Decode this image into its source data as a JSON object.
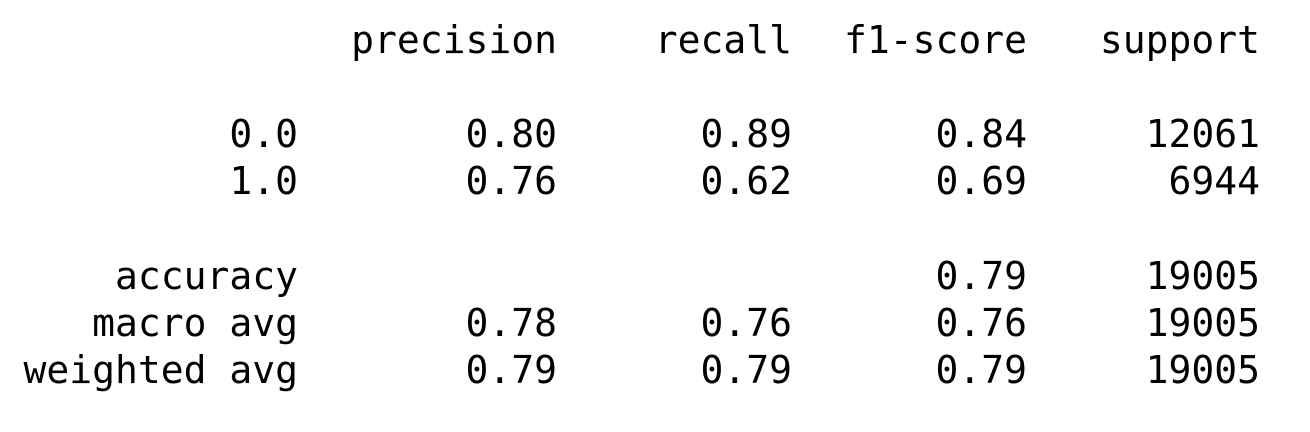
{
  "headers": {
    "precision": "precision",
    "recall": "recall",
    "f1": "f1-score",
    "support": "support"
  },
  "classes": [
    {
      "label": "0.0",
      "precision": "0.80",
      "recall": "0.89",
      "f1": "0.84",
      "support": "12061"
    },
    {
      "label": "1.0",
      "precision": "0.76",
      "recall": "0.62",
      "f1": "0.69",
      "support": "6944"
    }
  ],
  "summary": [
    {
      "label": "accuracy",
      "precision": "",
      "recall": "",
      "f1": "0.79",
      "support": "19005"
    },
    {
      "label": "macro avg",
      "precision": "0.78",
      "recall": "0.76",
      "f1": "0.76",
      "support": "19005"
    },
    {
      "label": "weighted avg",
      "precision": "0.79",
      "recall": "0.79",
      "f1": "0.79",
      "support": "19005"
    }
  ]
}
